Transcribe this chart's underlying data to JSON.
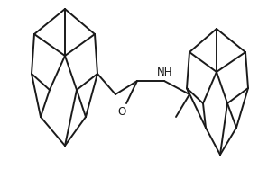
{
  "background": "#ffffff",
  "line_color": "#1a1a1a",
  "line_width": 1.4,
  "figsize": [
    3.07,
    1.98
  ],
  "dpi": 100,
  "O_label": "O",
  "NH_label": "NH",
  "font_size": 8.5
}
